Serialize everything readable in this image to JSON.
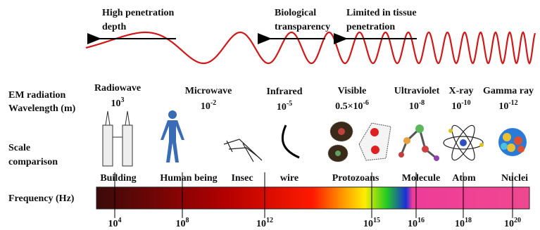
{
  "arrows": [
    {
      "lines": [
        "High penetration",
        "depth"
      ]
    },
    {
      "lines": [
        "Biological",
        "transparency"
      ]
    },
    {
      "lines": [
        "Limited in tissue",
        "penetration"
      ]
    }
  ],
  "row_labels": {
    "wavelength": [
      "EM radiation",
      "Wavelength  (m)"
    ],
    "scale": [
      "Scale",
      "comparison"
    ],
    "frequency": "Frequency (Hz)"
  },
  "bands": [
    {
      "name": "Radiowave",
      "wavelength": {
        "base": "10",
        "exponent": "3"
      }
    },
    {
      "name": "Microwave",
      "wavelength": {
        "base": "10",
        "exponent": "-2"
      }
    },
    {
      "name": "Infrared",
      "wavelength": {
        "base": "10",
        "exponent": "-5"
      }
    },
    {
      "name": "Visible",
      "wavelength": {
        "base": "0.5×10",
        "exponent": "-6"
      }
    },
    {
      "name": "Ultraviolet",
      "wavelength": {
        "base": "10",
        "exponent": "-8"
      }
    },
    {
      "name": "X-ray",
      "wavelength": {
        "base": "10",
        "exponent": "-10"
      }
    },
    {
      "name": "Gamma ray",
      "wavelength": {
        "base": "10",
        "exponent": "-12"
      }
    }
  ],
  "objects": [
    "Building",
    "Human being",
    "Insec",
    "wire",
    "Protozoans",
    "Molecule",
    "Atom",
    "Nuclei"
  ],
  "frequency_ticks": [
    {
      "base": "10",
      "exponent": "4"
    },
    {
      "base": "10",
      "exponent": "8"
    },
    {
      "base": "10",
      "exponent": "12"
    },
    {
      "base": "10",
      "exponent": "15"
    },
    {
      "base": "10",
      "exponent": "16"
    },
    {
      "base": "10",
      "exponent": "18"
    },
    {
      "base": "10",
      "exponent": "20"
    }
  ]
}
